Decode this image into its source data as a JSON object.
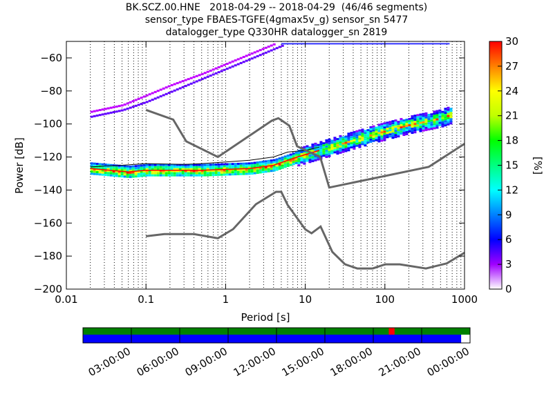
{
  "header": {
    "line1": "BK.SCZ.00.HNE   2018-04-29 -- 2018-04-29  (46/46 segments)",
    "line2": "sensor_type FBAES-TGFE(4gmax5v_g) sensor_sn 5477",
    "line3": "datalogger_type Q330HR datalogger_sn 2819"
  },
  "colorbar": {
    "label": "[%]",
    "min": 0,
    "max": 30,
    "ticks": [
      "0",
      "3",
      "6",
      "9",
      "12",
      "15",
      "18",
      "21",
      "24",
      "27",
      "30"
    ],
    "colormap": "pqlx"
  },
  "timeline": {
    "tick_labels": [
      "03:00:00",
      "06:00:00",
      "09:00:00",
      "12:00:00",
      "15:00:00",
      "18:00:00",
      "21:00:00",
      "00:00:00"
    ],
    "top_bar_color": "#008000",
    "gap_color": "#ff0000",
    "bottom_bar_color": "#0000ff",
    "gap_position_fraction": [
      0.79,
      0.805
    ],
    "bottom_bar_extent_fraction": 0.977
  },
  "chart_data": {
    "type": "heatmap",
    "title": "BK.SCZ.00.HNE   2018-04-29 -- 2018-04-29  (46/46 segments)",
    "xlabel": "Period [s]",
    "ylabel": "Power [dB]",
    "xscale": "log",
    "xlim": [
      0.01,
      1000
    ],
    "ylim": [
      -200,
      -50
    ],
    "x_tick_labels": [
      "0.01",
      "0.1",
      "1",
      "10",
      "100",
      "1000"
    ],
    "y_tick_labels": [
      "−200",
      "−180",
      "−160",
      "−140",
      "−120",
      "−100",
      "−80",
      "−60"
    ],
    "grid": "dotted vertical at minor log ticks",
    "noise_models": [
      {
        "name": "NHNM",
        "points": [
          [
            0.1,
            -91.5
          ],
          [
            0.22,
            -97.4
          ],
          [
            0.32,
            -110.5
          ],
          [
            0.8,
            -120
          ],
          [
            3.8,
            -98
          ],
          [
            4.6,
            -96.5
          ],
          [
            6.3,
            -101
          ],
          [
            7.9,
            -113.5
          ],
          [
            15.4,
            -120
          ],
          [
            20,
            -138.5
          ],
          [
            354.8,
            -126
          ],
          [
            1000,
            -112
          ]
        ]
      },
      {
        "name": "NLNM",
        "points": [
          [
            0.1,
            -168
          ],
          [
            0.17,
            -166.7
          ],
          [
            0.4,
            -166.7
          ],
          [
            0.8,
            -169.2
          ],
          [
            1.24,
            -163.7
          ],
          [
            2.4,
            -148.6
          ],
          [
            4.3,
            -141.1
          ],
          [
            5,
            -141.1
          ],
          [
            6,
            -149
          ],
          [
            10,
            -163.8
          ],
          [
            12,
            -166.2
          ],
          [
            15.6,
            -162.1
          ],
          [
            21.9,
            -177.5
          ],
          [
            31.6,
            -185
          ],
          [
            45,
            -187.5
          ],
          [
            70,
            -187.5
          ],
          [
            101,
            -185
          ],
          [
            154,
            -185
          ],
          [
            328,
            -187.5
          ],
          [
            600,
            -184.4
          ],
          [
            1000,
            -178
          ]
        ]
      }
    ],
    "mean_curve": {
      "points": [
        [
          0.02,
          -126
        ],
        [
          0.05,
          -125
        ],
        [
          0.1,
          -124
        ],
        [
          0.3,
          -124.5
        ],
        [
          0.5,
          -124
        ],
        [
          1,
          -123
        ],
        [
          2,
          -122
        ],
        [
          4,
          -120
        ],
        [
          6,
          -117
        ],
        [
          10,
          -116
        ],
        [
          15,
          -114
        ]
      ]
    },
    "psd_mode_curve": {
      "points": [
        [
          0.02,
          -127
        ],
        [
          0.06,
          -129
        ],
        [
          0.1,
          -128
        ],
        [
          0.5,
          -128
        ],
        [
          1,
          -127.5
        ],
        [
          2,
          -127
        ],
        [
          4,
          -125
        ],
        [
          8,
          -120
        ],
        [
          15,
          -116
        ],
        [
          30,
          -111
        ],
        [
          60,
          -106
        ],
        [
          150,
          -101
        ],
        [
          300,
          -100
        ],
        [
          650,
          -100
        ]
      ]
    },
    "histogram_bands": [
      {
        "name": "microseism_band",
        "points": [
          [
            10,
            -118
          ],
          [
            30,
            -111
          ],
          [
            80,
            -105
          ],
          [
            200,
            -100
          ],
          [
            500,
            -96
          ],
          [
            650,
            -94
          ]
        ],
        "spread_db": [
          8,
          10,
          10,
          9,
          8,
          6
        ]
      },
      {
        "name": "high_freq_spike_upper",
        "points": [
          [
            0.02,
            -92
          ],
          [
            0.05,
            -88
          ],
          [
            0.1,
            -82
          ],
          [
            0.2,
            -76
          ],
          [
            0.5,
            -69
          ],
          [
            1,
            -63
          ],
          [
            2,
            -57
          ],
          [
            4,
            -51
          ]
        ]
      },
      {
        "name": "high_freq_spike_lower",
        "points": [
          [
            0.02,
            -95
          ],
          [
            0.05,
            -91
          ],
          [
            0.1,
            -86
          ],
          [
            0.2,
            -80
          ],
          [
            0.5,
            -72
          ],
          [
            1,
            -66
          ],
          [
            2,
            -60
          ],
          [
            5,
            -52
          ]
        ]
      }
    ]
  }
}
